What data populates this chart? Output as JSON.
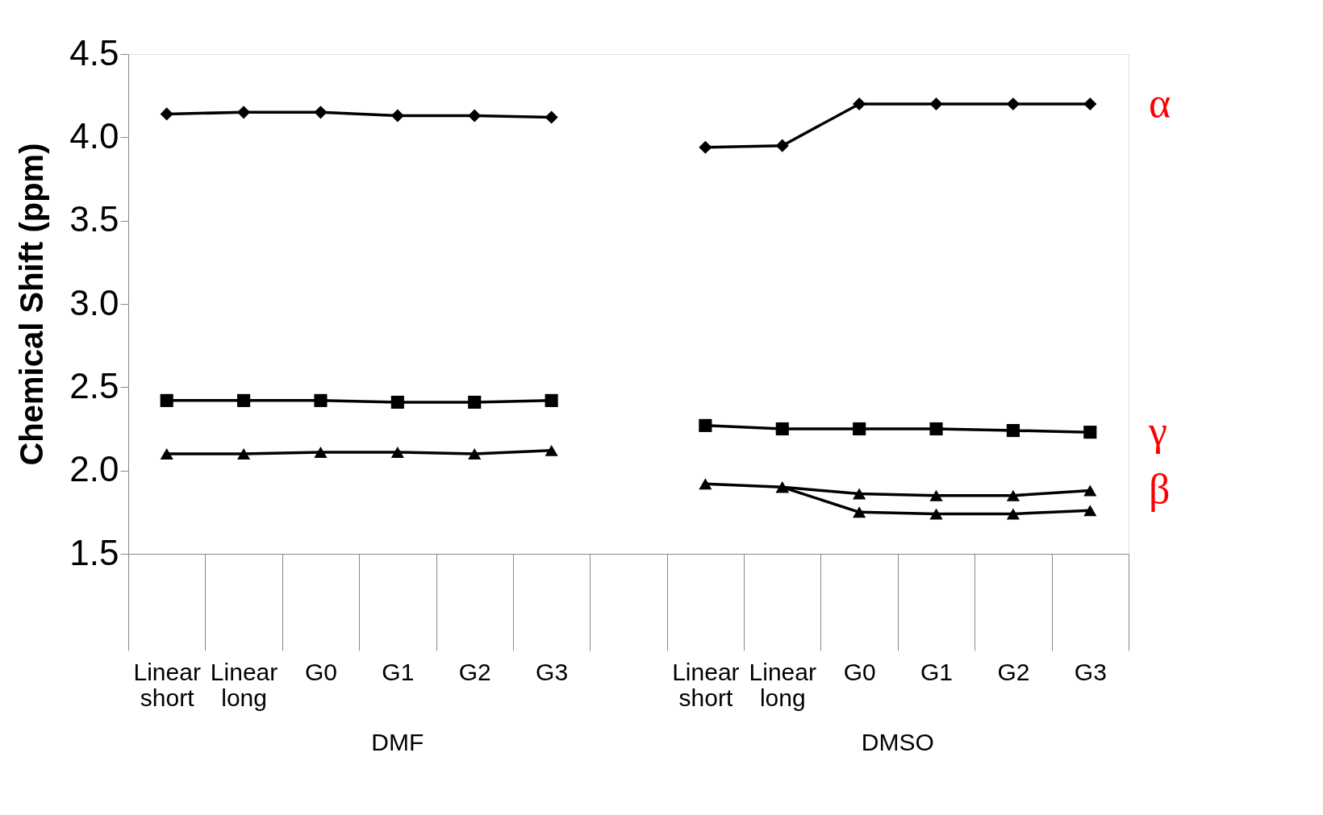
{
  "chart_data": {
    "type": "line",
    "ylabel": "Chemical Shift (ppm)",
    "categories": [
      "Linear short",
      "Linear long",
      "G0",
      "G1",
      "G2",
      "G3",
      null,
      "Linear short",
      "Linear long",
      "G0",
      "G1",
      "G2",
      "G3"
    ],
    "series": [
      {
        "color": "#000000",
        "marker": "diamond",
        "values": [
          4.14,
          4.15,
          4.15,
          4.13,
          4.13,
          4.12,
          null,
          3.94,
          3.95,
          4.2,
          4.2,
          4.2,
          4.2
        ]
      },
      {
        "color": "#000000",
        "marker": "square",
        "values": [
          2.42,
          2.42,
          2.42,
          2.41,
          2.41,
          2.42,
          null,
          2.27,
          2.25,
          2.25,
          2.25,
          2.24,
          2.23
        ]
      },
      {
        "color": "#000000",
        "marker": "triangle",
        "values": [
          2.1,
          2.1,
          2.11,
          2.11,
          2.1,
          2.12,
          null,
          1.92,
          1.9,
          1.86,
          1.85,
          1.85,
          1.88
        ]
      },
      {
        "color": "#000000",
        "marker": "triangle",
        "values": [
          null,
          null,
          null,
          null,
          null,
          null,
          null,
          null,
          1.9,
          1.75,
          1.74,
          1.74,
          1.76
        ]
      }
    ],
    "ylim": [
      1.5,
      4.5
    ],
    "yticks": [
      {
        "value": 1.5,
        "label": "1.5"
      },
      {
        "value": 2,
        "label": "2.0"
      },
      {
        "value": 2.5,
        "label": "2.5"
      },
      {
        "value": 3,
        "label": "3.0"
      },
      {
        "value": 3.5,
        "label": "3.5"
      },
      {
        "value": 4,
        "label": "4.0"
      },
      {
        "value": 4.5,
        "label": "4.5"
      }
    ],
    "annotations": [
      "DMF",
      "DMSO",
      "α",
      "γ",
      "β"
    ]
  }
}
